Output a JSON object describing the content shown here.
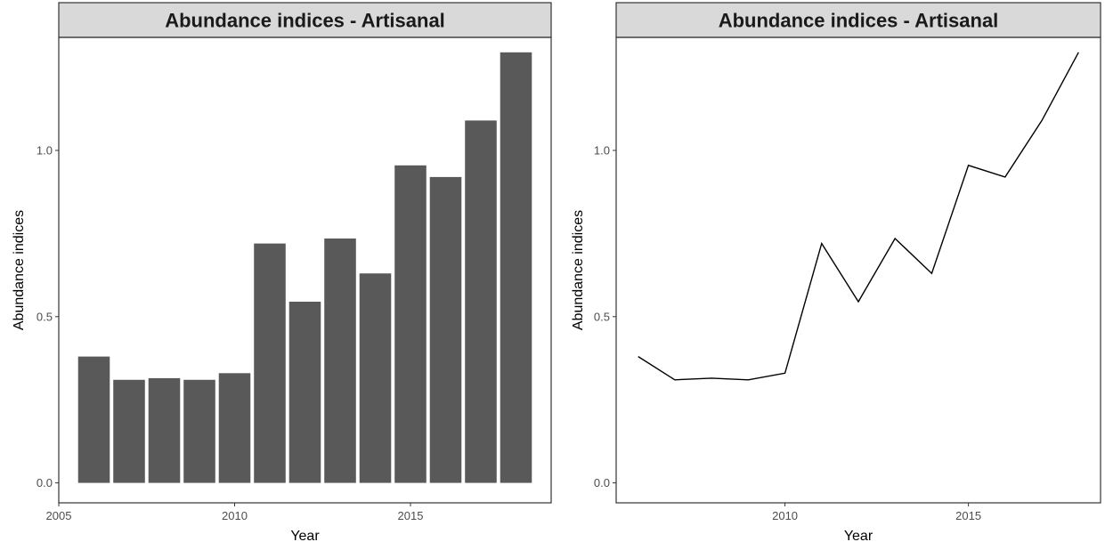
{
  "panels": [
    {
      "strip_title": "Abundance indices - Artisanal",
      "chart_data": {
        "type": "bar",
        "title": "Abundance indices - Artisanal",
        "xlabel": "Year",
        "ylabel": "Abundance indices",
        "x": [
          2006,
          2007,
          2008,
          2009,
          2010,
          2011,
          2012,
          2013,
          2014,
          2015,
          2016,
          2017,
          2018
        ],
        "values": [
          0.38,
          0.31,
          0.315,
          0.31,
          0.33,
          0.72,
          0.545,
          0.735,
          0.63,
          0.955,
          0.92,
          1.09,
          1.295
        ],
        "xlim": [
          2005,
          2019
        ],
        "ylim": [
          -0.06,
          1.34
        ],
        "x_ticks": [
          "2005",
          "2010",
          "2015"
        ],
        "y_ticks": [
          "0.0",
          "0.5",
          "1.0"
        ],
        "grid": false,
        "bar_color": "#595959"
      }
    },
    {
      "strip_title": "Abundance indices - Artisanal",
      "chart_data": {
        "type": "line",
        "title": "Abundance indices - Artisanal",
        "xlabel": "Year",
        "ylabel": "Abundance indices",
        "x": [
          2006,
          2007,
          2008,
          2009,
          2010,
          2011,
          2012,
          2013,
          2014,
          2015,
          2016,
          2017,
          2018
        ],
        "values": [
          0.38,
          0.31,
          0.315,
          0.31,
          0.33,
          0.72,
          0.545,
          0.735,
          0.63,
          0.955,
          0.92,
          1.09,
          1.295
        ],
        "xlim": [
          2005.4,
          2018.6
        ],
        "ylim": [
          -0.06,
          1.34
        ],
        "x_ticks": [
          "2010",
          "2015"
        ],
        "y_ticks": [
          "0.0",
          "0.5",
          "1.0"
        ],
        "grid": false,
        "line_color": "#000000"
      }
    }
  ],
  "colors": {
    "strip_fill": "#d9d9d9",
    "panel_border": "#333333",
    "bar": "#595959",
    "line": "#000000"
  }
}
